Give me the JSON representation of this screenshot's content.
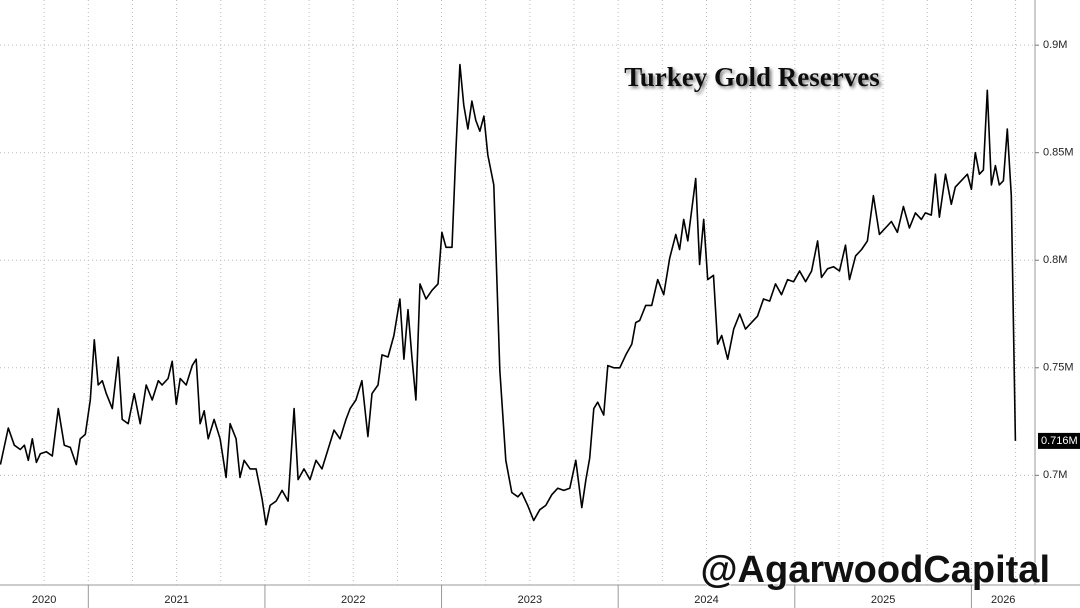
{
  "chart_data": {
    "type": "line",
    "title": "Turkey Gold Reserves",
    "watermark": "@AgarwoodCapital",
    "color": "#000000",
    "grid": true,
    "x": [
      2020.502,
      2020.547,
      2020.581,
      2020.615,
      2020.638,
      2020.66,
      2020.683,
      2020.706,
      2020.728,
      2020.762,
      2020.796,
      2020.83,
      2020.864,
      2020.898,
      2020.932,
      2020.954,
      2020.983,
      2021.011,
      2021.034,
      2021.056,
      2021.079,
      2021.102,
      2021.136,
      2021.169,
      2021.192,
      2021.226,
      2021.26,
      2021.294,
      2021.328,
      2021.362,
      2021.396,
      2021.418,
      2021.452,
      2021.475,
      2021.498,
      2021.52,
      2021.554,
      2021.588,
      2021.611,
      2021.633,
      2021.656,
      2021.679,
      2021.712,
      2021.746,
      2021.78,
      2021.803,
      2021.837,
      2021.859,
      2021.882,
      2021.916,
      2021.95,
      2021.984,
      2022.006,
      2022.029,
      2022.063,
      2022.097,
      2022.131,
      2022.165,
      2022.188,
      2022.221,
      2022.255,
      2022.289,
      2022.323,
      2022.357,
      2022.391,
      2022.425,
      2022.459,
      2022.482,
      2022.515,
      2022.549,
      2022.583,
      2022.606,
      2022.64,
      2022.663,
      2022.697,
      2022.73,
      2022.764,
      2022.787,
      2022.81,
      2022.832,
      2022.855,
      2022.878,
      2022.912,
      2022.946,
      2022.98,
      2023.002,
      2023.025,
      2023.059,
      2023.081,
      2023.104,
      2023.126,
      2023.149,
      2023.172,
      2023.194,
      2023.217,
      2023.24,
      2023.262,
      2023.296,
      2023.33,
      2023.364,
      2023.398,
      2023.432,
      2023.454,
      2023.488,
      2023.522,
      2023.556,
      2023.59,
      2023.624,
      2023.658,
      2023.692,
      2023.726,
      2023.76,
      2023.794,
      2023.817,
      2023.839,
      2023.862,
      2023.884,
      2023.918,
      2023.941,
      2023.975,
      2024.009,
      2024.043,
      2024.077,
      2024.099,
      2024.122,
      2024.156,
      2024.19,
      2024.224,
      2024.258,
      2024.292,
      2024.326,
      2024.348,
      2024.371,
      2024.394,
      2024.416,
      2024.439,
      2024.461,
      2024.484,
      2024.507,
      2024.54,
      2024.563,
      2024.586,
      2024.62,
      2024.654,
      2024.688,
      2024.721,
      2024.755,
      2024.789,
      2024.823,
      2024.858,
      2024.891,
      2024.925,
      2024.959,
      2024.993,
      2025.027,
      2025.061,
      2025.095,
      2025.129,
      2025.151,
      2025.185,
      2025.219,
      2025.253,
      2025.287,
      2025.31,
      2025.344,
      2025.378,
      2025.411,
      2025.445,
      2025.479,
      2025.513,
      2025.547,
      2025.581,
      2025.615,
      2025.649,
      2025.683,
      2025.717,
      2025.739,
      2025.773,
      2025.796,
      2025.819,
      2025.853,
      2025.886,
      2025.909,
      2025.943,
      2025.977,
      2026.0,
      2026.022,
      2026.045,
      2026.068,
      2026.09,
      2026.113,
      2026.136,
      2026.158,
      2026.181,
      2026.203,
      2026.226,
      2026.249
    ],
    "values": [
      705000,
      722000,
      714000,
      712000,
      714000,
      707000,
      717000,
      706000,
      710000,
      711000,
      709000,
      731000,
      714000,
      713000,
      705000,
      717000,
      719000,
      735000,
      763000,
      742000,
      744000,
      738000,
      731000,
      755000,
      726000,
      724000,
      738000,
      724000,
      742000,
      735000,
      744000,
      742000,
      745000,
      753000,
      733000,
      745000,
      742000,
      751000,
      754000,
      724000,
      730000,
      717000,
      726000,
      717000,
      699000,
      724000,
      717000,
      699000,
      707000,
      703000,
      703000,
      689000,
      677000,
      686000,
      688000,
      693000,
      688000,
      731000,
      698000,
      703000,
      698000,
      707000,
      703000,
      712000,
      721000,
      717000,
      726000,
      731000,
      735000,
      744000,
      718000,
      738000,
      742000,
      756000,
      755000,
      765000,
      782000,
      754000,
      777000,
      755000,
      735000,
      789000,
      782000,
      786000,
      789000,
      813000,
      806000,
      806000,
      851000,
      891000,
      872000,
      861000,
      874000,
      865000,
      860000,
      867000,
      849000,
      835000,
      749000,
      707000,
      692000,
      690000,
      692000,
      686000,
      679000,
      684000,
      686000,
      691000,
      694000,
      693000,
      694000,
      707000,
      685000,
      698000,
      708000,
      731000,
      734000,
      728000,
      751000,
      750000,
      750000,
      756000,
      761000,
      771000,
      772000,
      779000,
      779000,
      791000,
      784000,
      801000,
      812000,
      805000,
      819000,
      809000,
      823000,
      838000,
      798000,
      819000,
      791000,
      793000,
      761000,
      765000,
      754000,
      768000,
      775000,
      768000,
      771000,
      774000,
      782000,
      781000,
      789000,
      784000,
      791000,
      790000,
      795000,
      790000,
      795000,
      809000,
      792000,
      796000,
      797000,
      795000,
      807000,
      791000,
      802000,
      805000,
      809000,
      830000,
      812000,
      815000,
      818000,
      813000,
      825000,
      815000,
      822000,
      819000,
      822000,
      821000,
      840000,
      820000,
      840000,
      826000,
      834000,
      837000,
      840000,
      833000,
      850000,
      840000,
      842000,
      879000,
      835000,
      844000,
      835000,
      837000,
      861000,
      830000,
      716000
    ],
    "latest_label": "0.716M",
    "xlim": [
      2020.5,
      2026.36
    ],
    "xticks": [
      {
        "value": 2020,
        "label": "2020"
      },
      {
        "value": 2021,
        "label": "2021"
      },
      {
        "value": 2022,
        "label": "2022"
      },
      {
        "value": 2023,
        "label": "2023"
      },
      {
        "value": 2024,
        "label": "2024"
      },
      {
        "value": 2025,
        "label": "2025"
      },
      {
        "value": 2026,
        "label": "2026"
      }
    ],
    "ylim": [
      649000,
      921000
    ],
    "yticks": [
      {
        "value": 700000,
        "label": "0.7M"
      },
      {
        "value": 750000,
        "label": "0.75M"
      },
      {
        "value": 800000,
        "label": "0.8M"
      },
      {
        "value": 850000,
        "label": "0.85M"
      },
      {
        "value": 900000,
        "label": "0.9M"
      }
    ]
  }
}
